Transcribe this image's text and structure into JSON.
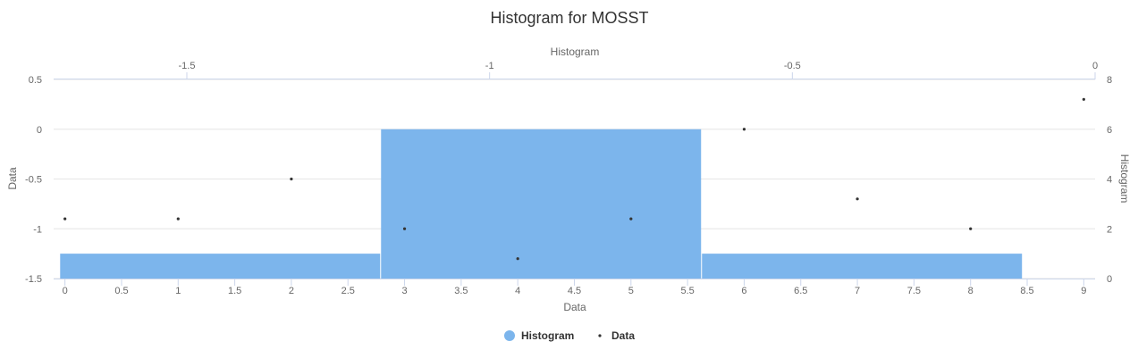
{
  "chart_data": {
    "type": "bar",
    "title": "Histogram for MOSST",
    "xlabel": "Data",
    "ylabel": "Data",
    "x2label": "Histogram",
    "y2label": "Histogram",
    "xlim": [
      -0.1,
      9.1
    ],
    "ylim": [
      -1.5,
      0.5
    ],
    "x2lim": [
      -1.72,
      0.0
    ],
    "y2lim": [
      0,
      8
    ],
    "x_ticks": [
      "0",
      "0.5",
      "1",
      "1.5",
      "2",
      "2.5",
      "3",
      "3.5",
      "4",
      "4.5",
      "5",
      "5.5",
      "6",
      "6.5",
      "7",
      "7.5",
      "8",
      "8.5",
      "9"
    ],
    "y_ticks": [
      "0.5",
      "0",
      "-0.5",
      "-1",
      "-1.5"
    ],
    "x2_ticks": [
      "-1.5",
      "-1",
      "-0.5",
      "0"
    ],
    "y2_ticks": [
      "8",
      "6",
      "4",
      "2",
      "0"
    ],
    "grid": true,
    "legend_position": "bottom-center",
    "series": [
      {
        "name": "Histogram",
        "kind": "histogram",
        "color": "#7cb5ec",
        "bins": [
          {
            "x0": -1.71,
            "x1": -1.18,
            "count": 1
          },
          {
            "x0": -1.18,
            "x1": -0.65,
            "count": 6
          },
          {
            "x0": -0.65,
            "x1": -0.12,
            "count": 1
          }
        ]
      },
      {
        "name": "Data",
        "kind": "scatter",
        "color": "#333333",
        "points": [
          {
            "x": 0,
            "y": -0.9
          },
          {
            "x": 1,
            "y": -0.9
          },
          {
            "x": 2,
            "y": -0.5
          },
          {
            "x": 3,
            "y": -1.0
          },
          {
            "x": 4,
            "y": -1.3
          },
          {
            "x": 5,
            "y": -0.9
          },
          {
            "x": 6,
            "y": 0.0
          },
          {
            "x": 7,
            "y": -0.7
          },
          {
            "x": 8,
            "y": -1.0
          },
          {
            "x": 9,
            "y": 0.3
          }
        ]
      }
    ]
  }
}
